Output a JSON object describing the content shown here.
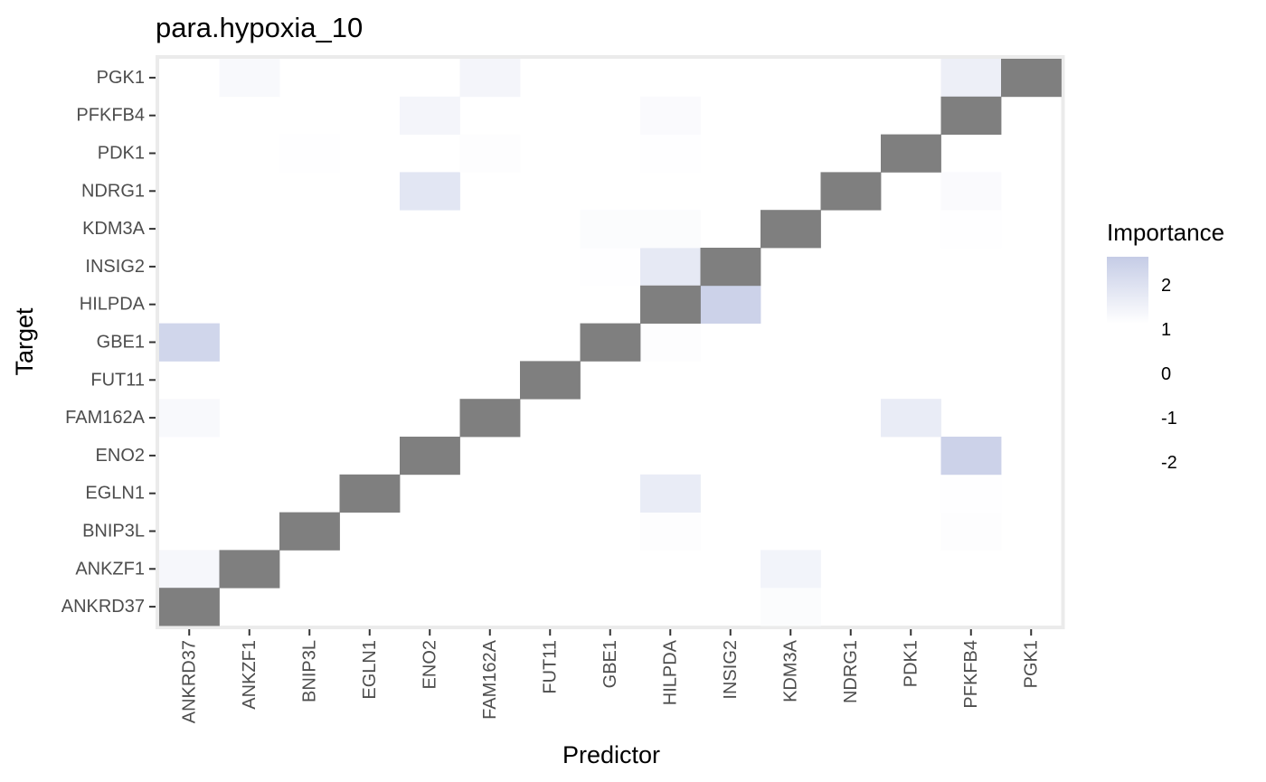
{
  "chart_data": {
    "type": "heatmap",
    "title": "para.hypoxia_10",
    "xlabel": "Predictor",
    "ylabel": "Target",
    "x_categories": [
      "ANKRD37",
      "ANKZF1",
      "BNIP3L",
      "EGLN1",
      "ENO2",
      "FAM162A",
      "FUT11",
      "GBE1",
      "HILPDA",
      "INSIG2",
      "KDM3A",
      "NDRG1",
      "PDK1",
      "PFKFB4",
      "PGK1"
    ],
    "y_categories": [
      "ANKRD37",
      "ANKZF1",
      "BNIP3L",
      "EGLN1",
      "ENO2",
      "FAM162A",
      "FUT11",
      "GBE1",
      "HILPDA",
      "INSIG2",
      "KDM3A",
      "NDRG1",
      "PDK1",
      "PFKFB4",
      "PGK1"
    ],
    "cells": [
      {
        "predictor": "ANKRD37",
        "target": "ANKZF1",
        "value": 1.25
      },
      {
        "predictor": "KDM3A",
        "target": "ANKZF1",
        "value": 1.35
      },
      {
        "predictor": "KDM3A",
        "target": "ANKRD37",
        "value": 1.1
      },
      {
        "predictor": "HILPDA",
        "target": "BNIP3L",
        "value": 1.05
      },
      {
        "predictor": "PFKFB4",
        "target": "BNIP3L",
        "value": 1.05
      },
      {
        "predictor": "HILPDA",
        "target": "EGLN1",
        "value": 1.6
      },
      {
        "predictor": "PFKFB4",
        "target": "EGLN1",
        "value": 1.03
      },
      {
        "predictor": "PFKFB4",
        "target": "ENO2",
        "value": 2.4
      },
      {
        "predictor": "ANKRD37",
        "target": "FAM162A",
        "value": 1.2
      },
      {
        "predictor": "PDK1",
        "target": "FAM162A",
        "value": 1.6
      },
      {
        "predictor": "ANKRD37",
        "target": "GBE1",
        "value": 2.3
      },
      {
        "predictor": "HILPDA",
        "target": "GBE1",
        "value": 1.05
      },
      {
        "predictor": "INSIG2",
        "target": "HILPDA",
        "value": 2.4
      },
      {
        "predictor": "GBE1",
        "target": "INSIG2",
        "value": 1.03
      },
      {
        "predictor": "HILPDA",
        "target": "INSIG2",
        "value": 1.7
      },
      {
        "predictor": "GBE1",
        "target": "KDM3A",
        "value": 1.1
      },
      {
        "predictor": "HILPDA",
        "target": "KDM3A",
        "value": 1.1
      },
      {
        "predictor": "PFKFB4",
        "target": "KDM3A",
        "value": 1.03
      },
      {
        "predictor": "ENO2",
        "target": "NDRG1",
        "value": 1.8
      },
      {
        "predictor": "PFKFB4",
        "target": "NDRG1",
        "value": 1.15
      },
      {
        "predictor": "BNIP3L",
        "target": "PDK1",
        "value": 1.02
      },
      {
        "predictor": "FAM162A",
        "target": "PDK1",
        "value": 1.05
      },
      {
        "predictor": "HILPDA",
        "target": "PDK1",
        "value": 1.02
      },
      {
        "predictor": "ENO2",
        "target": "PFKFB4",
        "value": 1.3
      },
      {
        "predictor": "HILPDA",
        "target": "PFKFB4",
        "value": 1.15
      },
      {
        "predictor": "ANKZF1",
        "target": "PGK1",
        "value": 1.2
      },
      {
        "predictor": "FAM162A",
        "target": "PGK1",
        "value": 1.3
      },
      {
        "predictor": "PFKFB4",
        "target": "PGK1",
        "value": 1.5
      }
    ],
    "diagonal_na": true,
    "colors": {
      "low": "#ffffff",
      "high": "#c5cce6",
      "na": "#7f7f7f",
      "panel_border": "#ebebeb"
    },
    "legend": {
      "title": "Importance",
      "position": "right",
      "breaks": [
        "2",
        "1",
        "0",
        "-1",
        "-2"
      ],
      "range": [
        1,
        2.6
      ]
    }
  }
}
